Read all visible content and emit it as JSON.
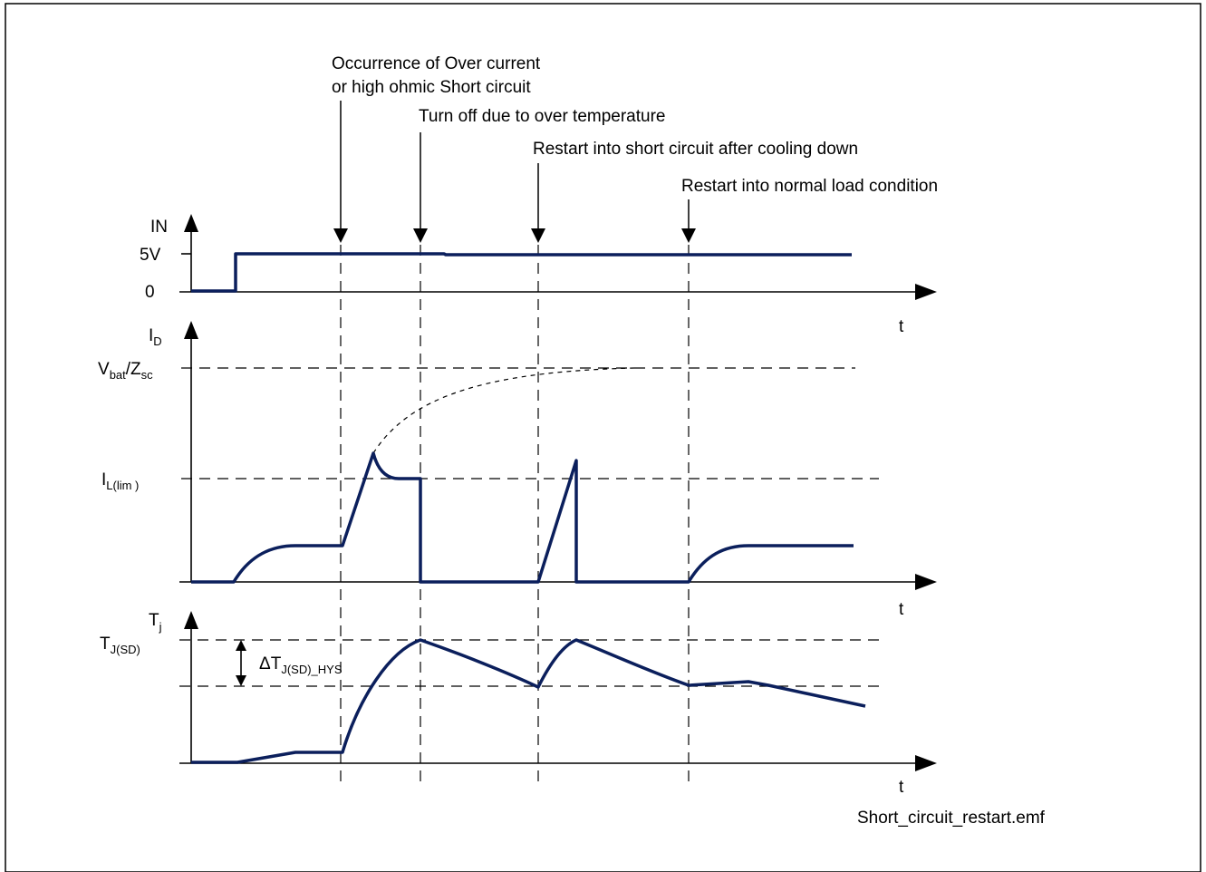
{
  "annotations": {
    "overcurrent_line1": "Occurrence of Over current",
    "overcurrent_line2": "or high ohmic Short circuit",
    "turn_off": "Turn off due to over temperature",
    "restart_short": "Restart into short circuit after cooling down",
    "restart_normal": "Restart into normal load condition"
  },
  "in_axis": {
    "name": "IN",
    "level_high": "5V",
    "level_low": "0",
    "t_label": "t"
  },
  "id_axis": {
    "name_main": "I",
    "name_sub": "D",
    "vbat_main": "V",
    "vbat_sub": "bat",
    "slash": "/Z",
    "zsc_sub": "sc",
    "ilim_main": "I",
    "ilim_sub": "L(lim )",
    "t_label": "t"
  },
  "tj_axis": {
    "name_main": "T",
    "name_sub": "j",
    "tjsd_main": "T",
    "tjsd_sub": "J(SD)",
    "hys_main": "ΔT",
    "hys_sub": "J(SD)_HYS",
    "t_label": "t"
  },
  "filename": "Short_circuit_restart.emf",
  "colors": {
    "signal": "#0b1f5c",
    "line": "#000000"
  }
}
